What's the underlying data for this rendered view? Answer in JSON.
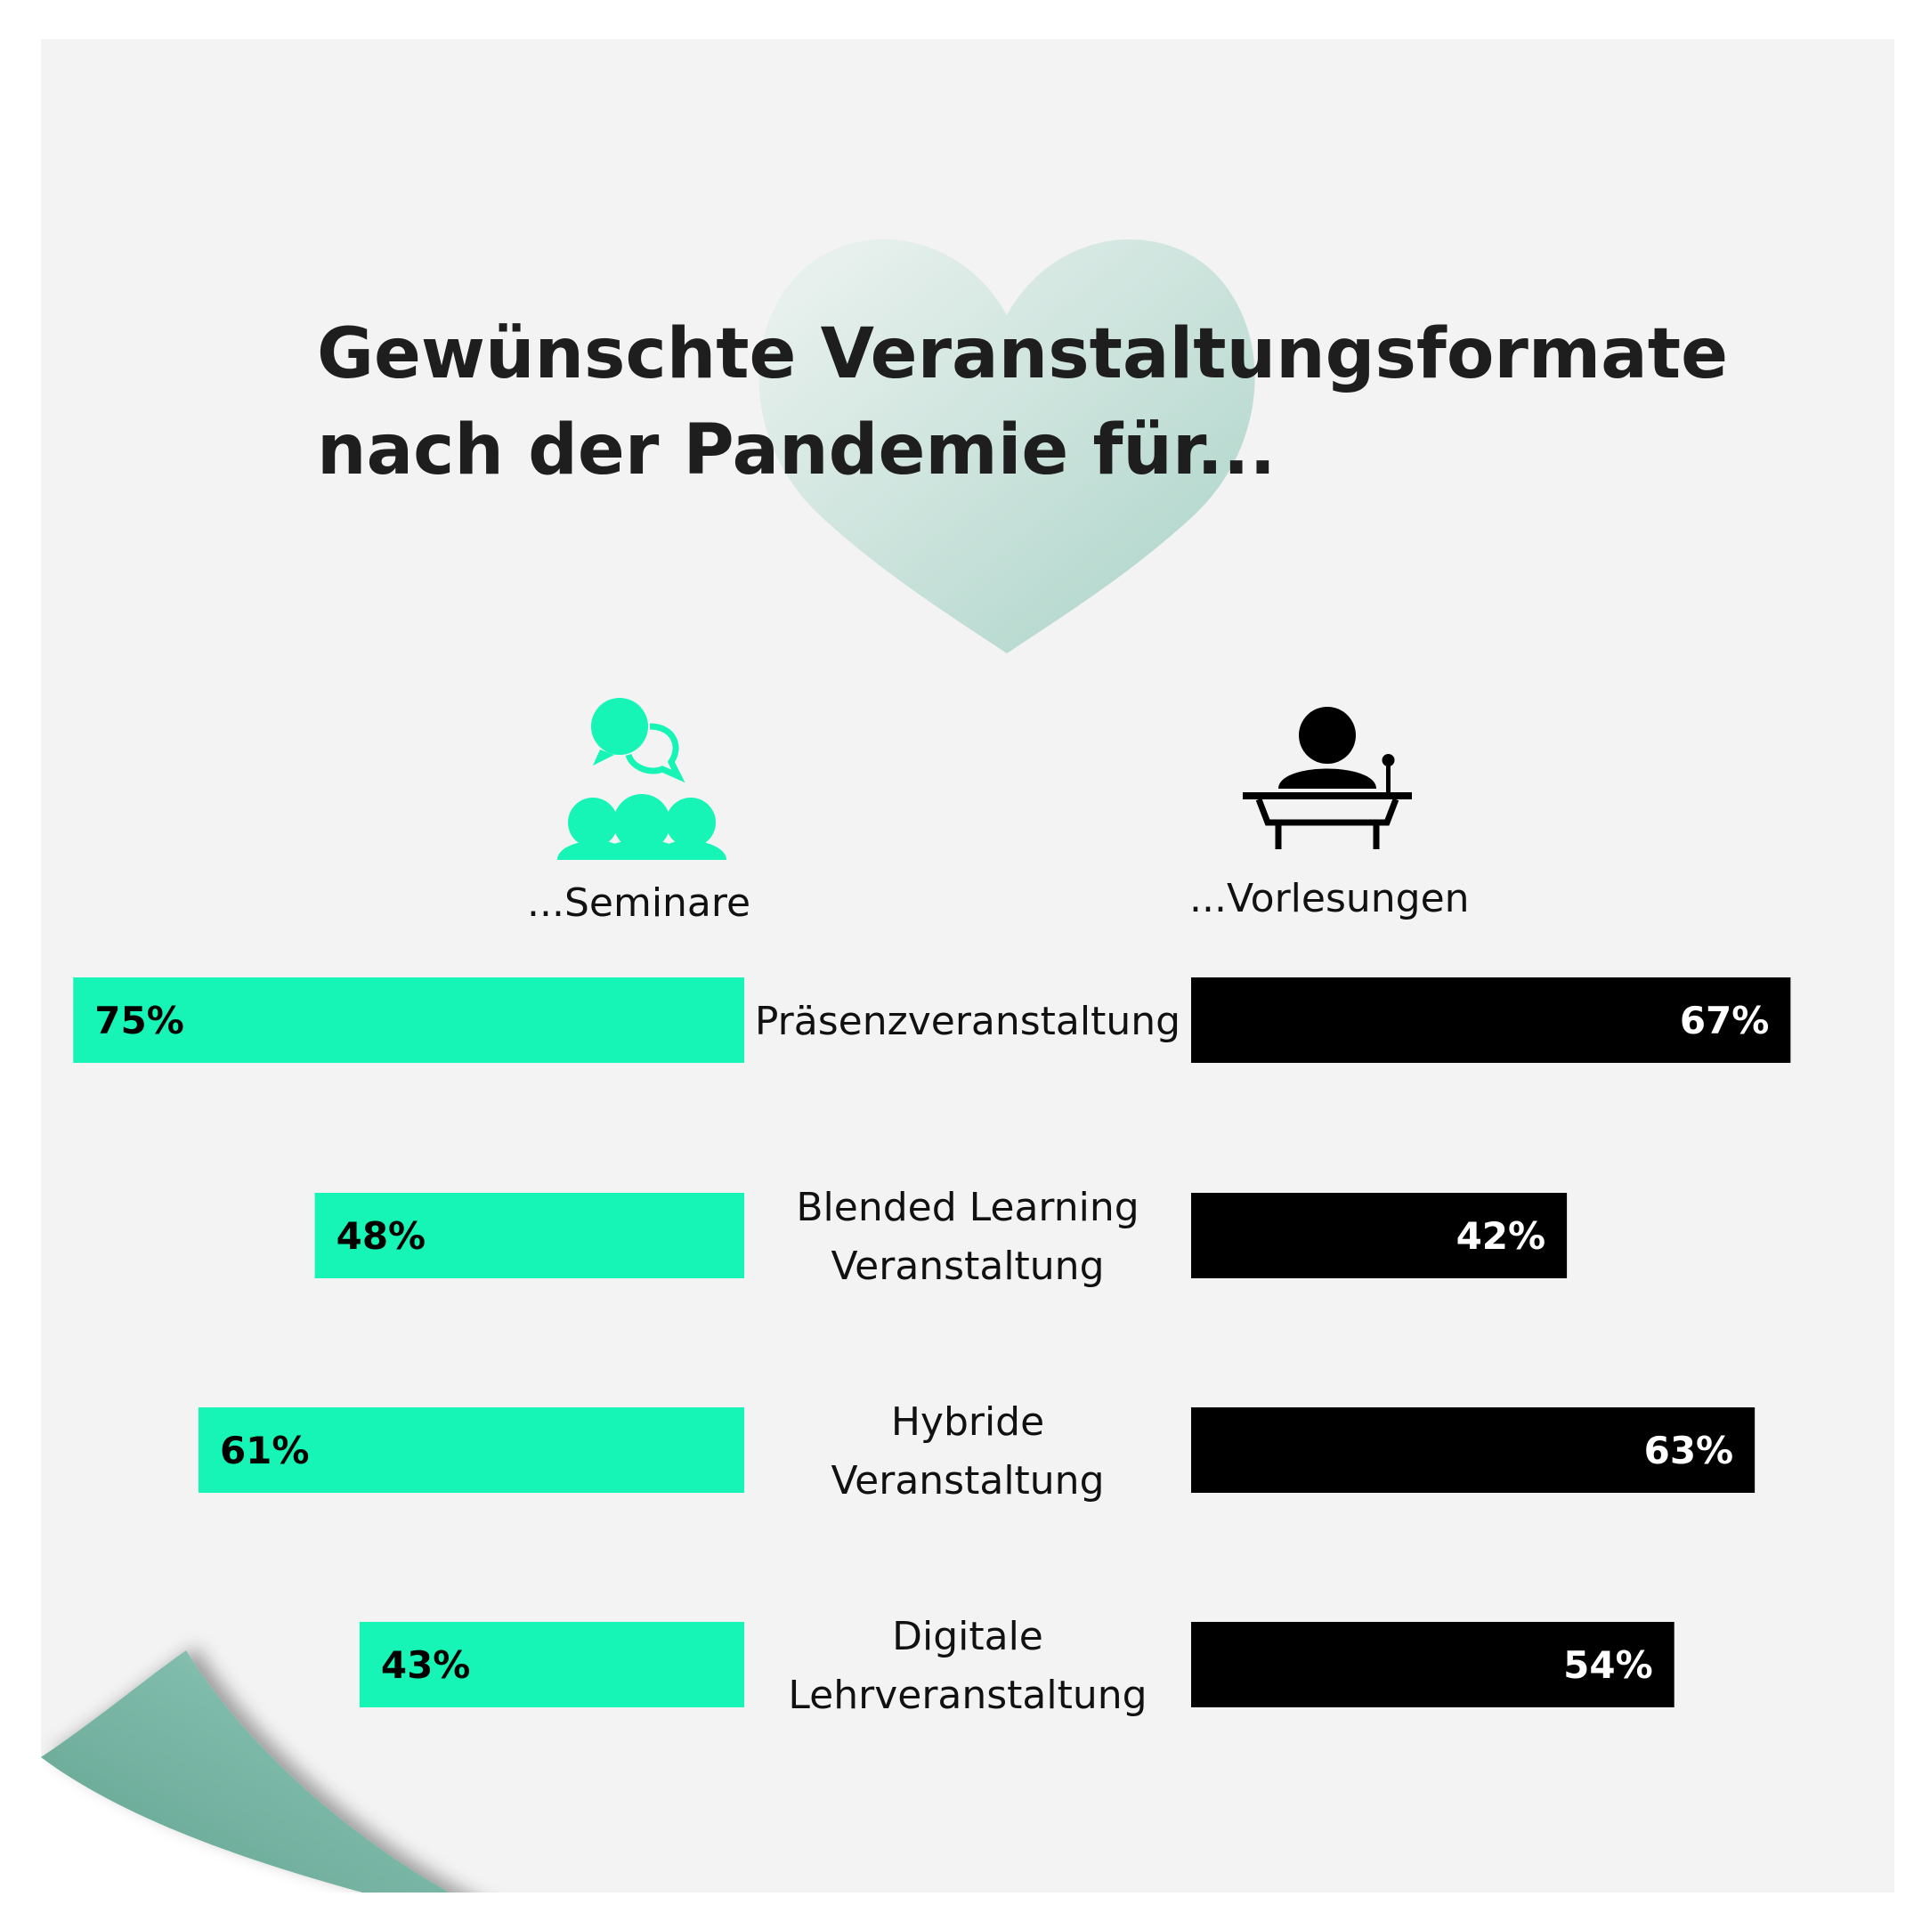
{
  "title": {
    "line1": "Gewünschte Veranstaltungsformate",
    "line2": "nach der Pandemie für..."
  },
  "groups": {
    "seminare": {
      "label": "...Seminare",
      "icon": "group-discussion-icon",
      "color": "#16f5b6"
    },
    "vorlesungen": {
      "label": "...Vorlesungen",
      "icon": "lecturer-podium-icon",
      "color": "#000000"
    }
  },
  "decorations": {
    "heart_color": "#a9d3c7",
    "curl_color": "#7fbbaa"
  },
  "chart_data": {
    "type": "bar",
    "orientation": "horizontal-diverging",
    "categories": [
      [
        "Präsenzveranstaltung"
      ],
      [
        "Blended Learning",
        "Veranstaltung"
      ],
      [
        "Hybride",
        "Veranstaltung"
      ],
      [
        "Digitale",
        "Lehrveranstaltung"
      ]
    ],
    "series": [
      {
        "name": "...Seminare",
        "values": [
          75,
          48,
          61,
          43
        ],
        "labels": [
          "75%",
          "48%",
          "61%",
          "43%"
        ],
        "color": "#16f5b6",
        "text_color": "#000000"
      },
      {
        "name": "...Vorlesungen",
        "values": [
          67,
          42,
          63,
          54
        ],
        "labels": [
          "67%",
          "42%",
          "63%",
          "54%"
        ],
        "color": "#000000",
        "text_color": "#ffffff"
      }
    ],
    "unit": "%",
    "xlim": [
      0,
      100
    ]
  }
}
